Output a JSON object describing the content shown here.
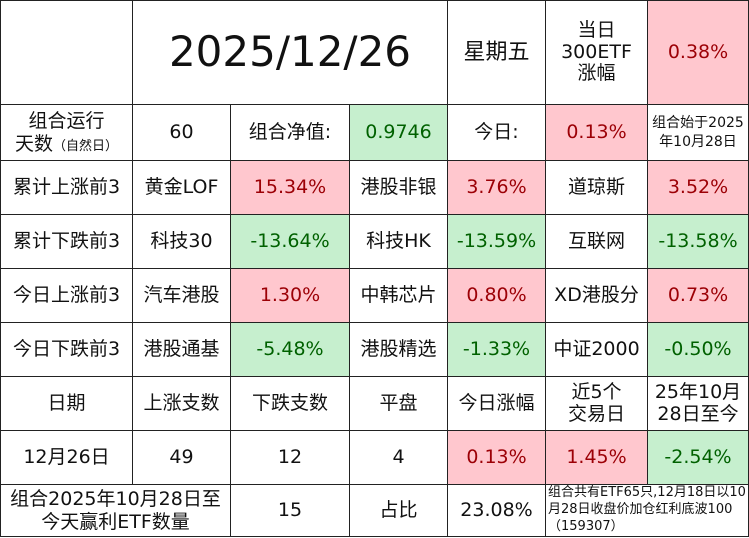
{
  "header": {
    "date": "2025/12/26",
    "weekday": "星期五",
    "etf_label": "当日\n300ETF\n涨幅",
    "etf_value": "0.38%"
  },
  "summary": {
    "days_label": "组合运行\n天数",
    "days_note": "（自然日）",
    "days_value": "60",
    "nav_label": "组合净值:",
    "nav_value": "0.9746",
    "today_label": "今日:",
    "today_value": "0.13%",
    "start_note": "组合始于2025年10月28日"
  },
  "rankings": [
    {
      "label": "累计上涨前3",
      "items": [
        {
          "name": "黄金LOF",
          "value": "15.34%"
        },
        {
          "name": "港股非银",
          "value": "3.76%"
        },
        {
          "name": "道琼斯",
          "value": "3.52%"
        }
      ]
    },
    {
      "label": "累计下跌前3",
      "items": [
        {
          "name": "科技30",
          "value": "-13.64%"
        },
        {
          "name": "科技HK",
          "value": "-13.59%"
        },
        {
          "name": "互联网",
          "value": "-13.58%"
        }
      ]
    },
    {
      "label": "今日上涨前3",
      "items": [
        {
          "name": "汽车港股",
          "value": "1.30%"
        },
        {
          "name": "中韩芯片",
          "value": "0.80%"
        },
        {
          "name": "XD港股分",
          "value": "0.73%"
        }
      ]
    },
    {
      "label": "今日下跌前3",
      "items": [
        {
          "name": "港股通基",
          "value": "-5.48%"
        },
        {
          "name": "港股精选",
          "value": "-1.33%"
        },
        {
          "name": "中证2000",
          "value": "-0.50%"
        }
      ]
    }
  ],
  "stats": {
    "headers": [
      "日期",
      "上涨支数",
      "下跌支数",
      "平盘",
      "今日涨幅",
      "近5个\n交易日",
      "25年10月\n28日至今"
    ],
    "row": [
      "12月26日",
      "49",
      "12",
      "4",
      "0.13%",
      "1.45%",
      "-2.54%"
    ]
  },
  "footer": {
    "label": "组合2025年10月28日至\n今天赢利ETF数量",
    "count": "15",
    "ratio_label": "占比",
    "ratio_value": "23.08%",
    "note": "组合共有ETF65只,12月18日以10月28日收盘价加仓红利底波100（159307）"
  },
  "colors": {
    "positive_bg": "#ffc7ce",
    "positive_fg": "#9c0006",
    "negative_bg": "#c6efce",
    "negative_fg": "#006100"
  }
}
